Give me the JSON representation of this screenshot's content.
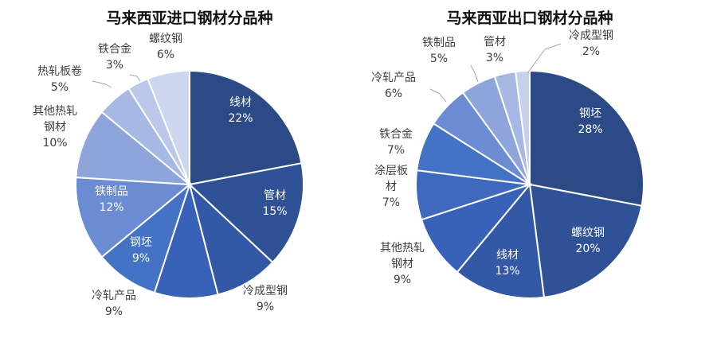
{
  "chart_data": [
    {
      "type": "pie",
      "title": "马来西亚进口钢材分品种",
      "slices": [
        {
          "name": "线材",
          "value": 22,
          "label_lines": [
            "线材"
          ],
          "pct": "22%",
          "color": "#2c4a86",
          "label_inside": true
        },
        {
          "name": "管材",
          "value": 15,
          "label_lines": [
            "管材"
          ],
          "pct": "15%",
          "color": "#2f5195",
          "label_inside": true
        },
        {
          "name": "冷成型钢",
          "value": 9,
          "label_lines": [
            "冷成型钢"
          ],
          "pct": "9%",
          "color": "#3358a6",
          "label_inside": false
        },
        {
          "name": "冷轧产品",
          "value": 9,
          "label_lines": [
            "冷轧产品"
          ],
          "pct": "9%",
          "color": "#3862b8",
          "label_inside": false
        },
        {
          "name": "钢坯",
          "value": 9,
          "label_lines": [
            "钢坯"
          ],
          "pct": "9%",
          "color": "#4472c4",
          "label_inside": true
        },
        {
          "name": "铁制品",
          "value": 12,
          "label_lines": [
            "铁制品"
          ],
          "pct": "12%",
          "color": "#6b8bd3",
          "label_inside": true
        },
        {
          "name": "其他热轧钢材",
          "value": 10,
          "label_lines": [
            "其他热轧",
            "钢材"
          ],
          "pct": "10%",
          "color": "#8ea5dc",
          "label_inside": false
        },
        {
          "name": "热轧板卷",
          "value": 5,
          "label_lines": [
            "热轧板卷"
          ],
          "pct": "5%",
          "color": "#a6b8e3",
          "label_inside": false
        },
        {
          "name": "铁合金",
          "value": 3,
          "label_lines": [
            "铁合金"
          ],
          "pct": "3%",
          "color": "#bbc8ea",
          "label_inside": false
        },
        {
          "name": "螺纹钢",
          "value": 6,
          "label_lines": [
            "螺纹钢"
          ],
          "pct": "6%",
          "color": "#cdd6ef",
          "label_inside": false
        }
      ]
    },
    {
      "type": "pie",
      "title": "马来西亚出口钢材分品种",
      "slices": [
        {
          "name": "钢坯",
          "value": 28,
          "label_lines": [
            "钢坯"
          ],
          "pct": "28%",
          "color": "#2c4a86",
          "label_inside": true
        },
        {
          "name": "螺纹钢",
          "value": 20,
          "label_lines": [
            "螺纹钢"
          ],
          "pct": "20%",
          "color": "#2f5195",
          "label_inside": true
        },
        {
          "name": "线材",
          "value": 13,
          "label_lines": [
            "线材"
          ],
          "pct": "13%",
          "color": "#3358a6",
          "label_inside": true
        },
        {
          "name": "其他热轧钢材",
          "value": 9,
          "label_lines": [
            "其他热轧",
            "钢材"
          ],
          "pct": "9%",
          "color": "#3862b8",
          "label_inside": false
        },
        {
          "name": "涂层板材",
          "value": 7,
          "label_lines": [
            "涂层板",
            "材"
          ],
          "pct": "7%",
          "color": "#3f69bd",
          "label_inside": false
        },
        {
          "name": "铁合金",
          "value": 7,
          "label_lines": [
            "铁合金"
          ],
          "pct": "7%",
          "color": "#4472c4",
          "label_inside": false
        },
        {
          "name": "冷轧产品",
          "value": 6,
          "label_lines": [
            "冷轧产品"
          ],
          "pct": "6%",
          "color": "#6b8bd3",
          "label_inside": false
        },
        {
          "name": "铁制品",
          "value": 5,
          "label_lines": [
            "铁制品"
          ],
          "pct": "5%",
          "color": "#8ea5dc",
          "label_inside": false
        },
        {
          "name": "管材",
          "value": 3,
          "label_lines": [
            "管材"
          ],
          "pct": "3%",
          "color": "#a6b8e3",
          "label_inside": false
        },
        {
          "name": "冷成型钢",
          "value": 2,
          "label_lines": [
            "冷成型钢"
          ],
          "pct": "2%",
          "color": "#c6d1ed",
          "label_inside": false
        }
      ]
    }
  ]
}
